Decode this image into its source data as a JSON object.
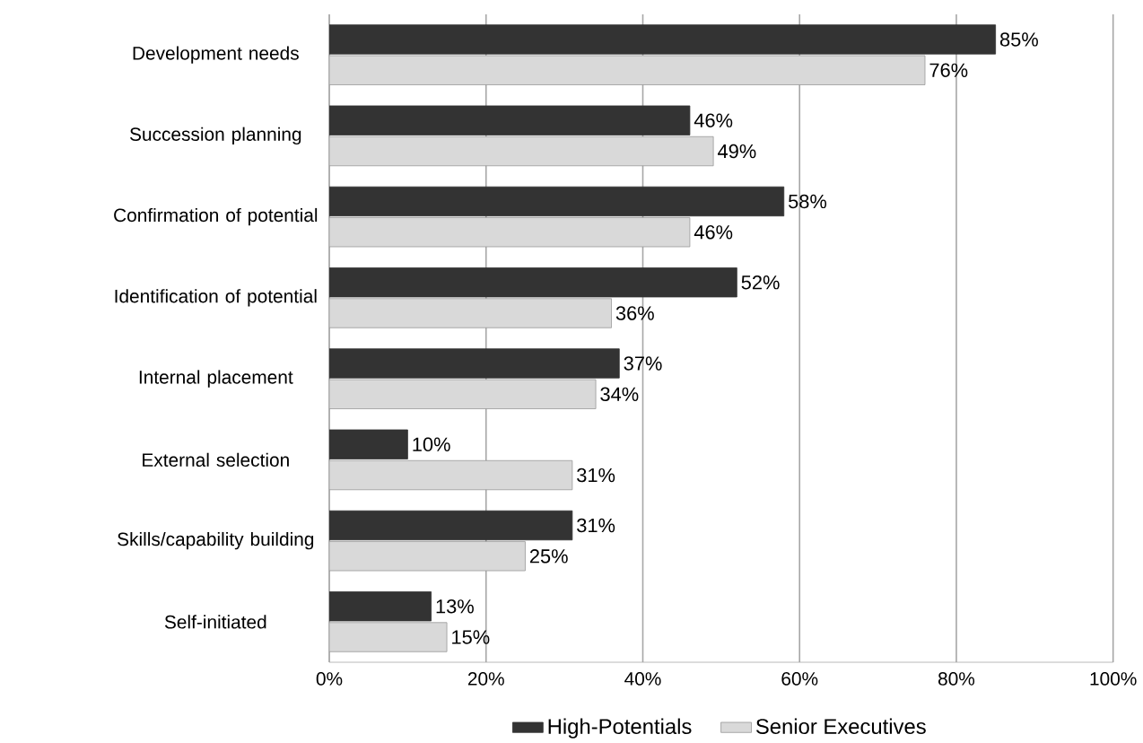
{
  "chart_data": {
    "type": "bar",
    "orientation": "horizontal",
    "categories": [
      "Development needs",
      "Succession planning",
      "Confirmation of potential",
      "Identification of potential",
      "Internal placement",
      "External selection",
      "Skills/capability building",
      "Self-initiated"
    ],
    "series": [
      {
        "name": "High-Potentials",
        "color": "#333333",
        "values": [
          85,
          46,
          58,
          52,
          37,
          10,
          31,
          13
        ],
        "value_labels": [
          "85%",
          "46%",
          "58%",
          "52%",
          "37%",
          "10%",
          "31%",
          "13%"
        ]
      },
      {
        "name": "Senior Executives",
        "color": "#d9d9d9",
        "values": [
          76,
          49,
          46,
          36,
          34,
          31,
          25,
          15
        ],
        "value_labels": [
          "76%",
          "49%",
          "46%",
          "36%",
          "34%",
          "31%",
          "25%",
          "15%"
        ]
      }
    ],
    "xlim": [
      0,
      100
    ],
    "xticks": [
      {
        "value": 0,
        "label": "0%"
      },
      {
        "value": 20,
        "label": "20%"
      },
      {
        "value": 40,
        "label": "40%"
      },
      {
        "value": 60,
        "label": "60%"
      },
      {
        "value": 80,
        "label": "80%"
      },
      {
        "value": 100,
        "label": "100%"
      }
    ],
    "grid": "x",
    "legend": "bottom"
  }
}
